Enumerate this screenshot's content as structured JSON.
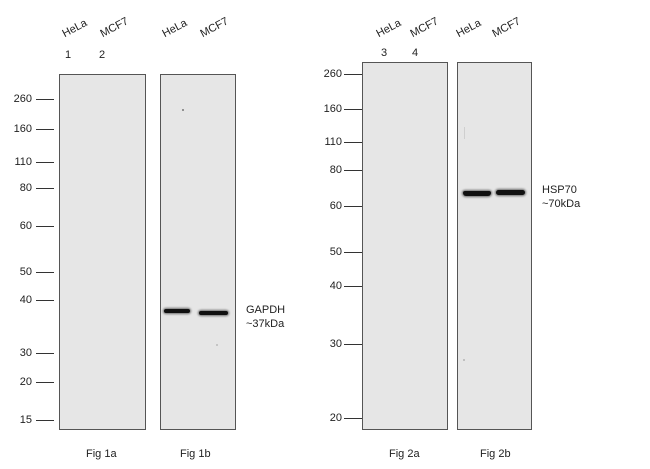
{
  "blots": [
    {
      "id": "fig1a",
      "lanes": [
        "HeLa",
        "MCF7"
      ],
      "lane_numbers": [
        "1",
        "2"
      ],
      "mw_markers": [
        "260",
        "160",
        "110",
        "80",
        "60",
        "50",
        "40",
        "30",
        "20",
        "15"
      ],
      "caption": "Fig 1a"
    },
    {
      "id": "fig1b",
      "lanes": [
        "HeLa",
        "MCF7"
      ],
      "caption": "Fig 1b",
      "annotation": {
        "target": "GAPDH",
        "size": "~37kDa"
      }
    },
    {
      "id": "fig2a",
      "lanes": [
        "HeLa",
        "MCF7"
      ],
      "lane_numbers": [
        "3",
        "4"
      ],
      "mw_markers": [
        "260",
        "160",
        "110",
        "80",
        "60",
        "50",
        "40",
        "30",
        "20"
      ],
      "caption": "Fig 2a"
    },
    {
      "id": "fig2b",
      "lanes": [
        "HeLa",
        "MCF7"
      ],
      "caption": "Fig 2b",
      "annotation": {
        "target": "HSP70",
        "size": "~70kDa"
      }
    }
  ],
  "colors": {
    "membrane": "#e6e6e6",
    "band": "#111111",
    "border": "#555555"
  }
}
